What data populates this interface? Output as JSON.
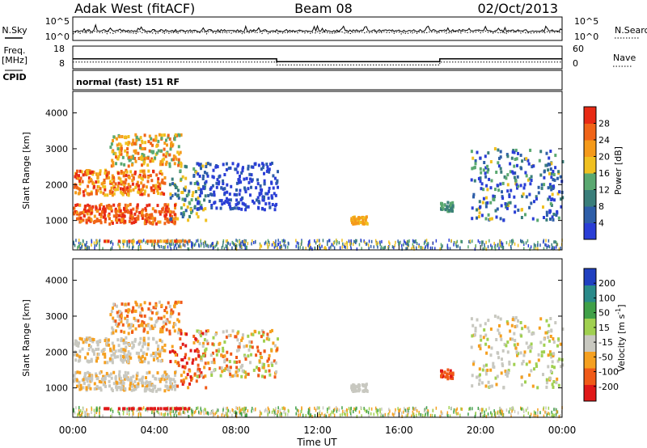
{
  "header": {
    "station": "Adak West (fitACF)",
    "beam": "Beam 08",
    "date": "02/Oct/2013"
  },
  "chart_data": [
    {
      "type": "line",
      "panel": "noise",
      "left_label": "N.Sky",
      "right_label": "N.Search",
      "left_ticks": [
        "10^5",
        "10^0"
      ],
      "right_ticks": [
        "10^5",
        "10^0"
      ]
    },
    {
      "type": "line",
      "panel": "frequency",
      "left_label_line1": "Freq.",
      "left_label_line2": "[MHz]",
      "right_label": "Nave",
      "left_ticks": [
        "18",
        "8"
      ],
      "right_ticks": [
        "60",
        "0"
      ],
      "x_hours": [
        0,
        10,
        10,
        18,
        18,
        24
      ],
      "freq_mhz": [
        12.2,
        12.2,
        10.6,
        10.6,
        12.2,
        12.2
      ]
    },
    {
      "type": "text",
      "panel": "cpid",
      "label": "CPID",
      "value": "normal (fast) 151 RF"
    },
    {
      "type": "heatmap",
      "panel": "power",
      "ylabel": "Slant Range [km]",
      "yticks": [
        "1000",
        "2000",
        "3000",
        "4000"
      ],
      "ylim": [
        180,
        4600
      ],
      "xlim": [
        0,
        24
      ],
      "colorbar_label": "Power [dB]",
      "colorbar_ticks": [
        "4",
        "8",
        "12",
        "16",
        "20",
        "24",
        "28"
      ]
    },
    {
      "type": "heatmap",
      "panel": "velocity",
      "ylabel": "Slant Range [km]",
      "yticks": [
        "1000",
        "2000",
        "3000",
        "4000"
      ],
      "ylim": [
        180,
        4600
      ],
      "xlim": [
        0,
        24
      ],
      "xlabel": "Time UT",
      "xticks": [
        "00:00",
        "04:00",
        "08:00",
        "12:00",
        "16:00",
        "20:00",
        "00:00"
      ],
      "colorbar_label": "Velocity [m s",
      "colorbar_label_sup": "-1",
      "colorbar_label_end": "]",
      "colorbar_ticks": [
        "-200",
        "-100",
        "-50",
        "-15",
        "15",
        "50",
        "100",
        "200"
      ]
    }
  ]
}
